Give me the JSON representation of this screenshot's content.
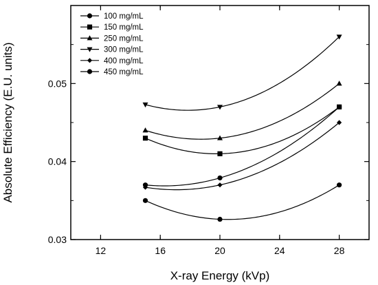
{
  "chart_data": {
    "type": "line",
    "xlabel": "X-ray Energy (kVp)",
    "ylabel": "Absolute Efficiency (E.U. units)",
    "xlim": [
      10,
      30
    ],
    "ylim": [
      0.03,
      0.06
    ],
    "xticks": [
      12,
      16,
      20,
      24,
      28
    ],
    "yticks": [
      0.03,
      0.04,
      0.05
    ],
    "xtick_labels": [
      "12",
      "16",
      "20",
      "24",
      "28"
    ],
    "ytick_labels": [
      "0.03",
      "0.04",
      "0.05"
    ],
    "x": [
      15,
      20,
      28
    ],
    "grid": false,
    "legend_position": "top-left",
    "series": [
      {
        "name": "100 mg/mL",
        "marker": "circle",
        "values": [
          0.035,
          0.0326,
          0.037
        ]
      },
      {
        "name": "150 mg/mL",
        "marker": "square",
        "values": [
          0.043,
          0.041,
          0.047
        ]
      },
      {
        "name": "250 mg/mL",
        "marker": "triangle-up",
        "values": [
          0.044,
          0.043,
          0.05
        ]
      },
      {
        "name": "300 mg/mL",
        "marker": "triangle-down",
        "values": [
          0.0473,
          0.047,
          0.056
        ]
      },
      {
        "name": "400 mg/mL",
        "marker": "diamond",
        "values": [
          0.0367,
          0.037,
          0.045
        ]
      },
      {
        "name": "450 mg/mL",
        "marker": "circle",
        "values": [
          0.037,
          0.0379,
          0.047
        ]
      }
    ]
  }
}
